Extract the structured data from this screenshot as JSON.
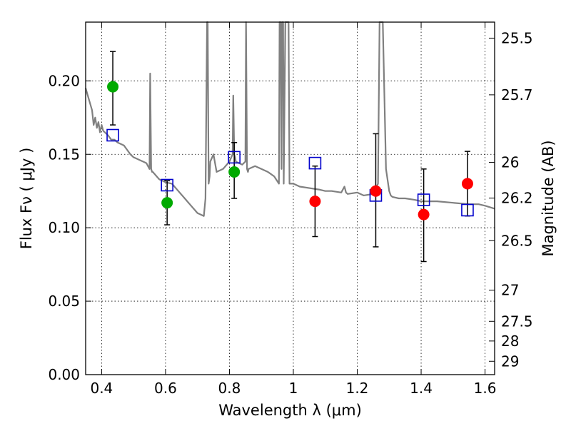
{
  "chart_data": {
    "type": "scatter",
    "xlabel": "Wavelength  λ (μm)",
    "ylabel": "Flux  Fν  ( μJy )",
    "y2label": "Magnitude (AB)",
    "xlim": [
      0.35,
      1.63
    ],
    "ylim": [
      0.0,
      0.24
    ],
    "grid": true,
    "x_ticks": [
      0.4,
      0.6,
      0.8,
      1.0,
      1.2,
      1.4,
      1.6
    ],
    "x_tick_labels": [
      "0.4",
      "0.6",
      "0.8",
      "1",
      "1.2",
      "1.4",
      "1.6"
    ],
    "y_ticks": [
      0.0,
      0.05,
      0.1,
      0.15,
      0.2
    ],
    "y_tick_labels": [
      "0.00",
      "0.05",
      "0.10",
      "0.15",
      "0.20"
    ],
    "mag_ticks": [
      {
        "label": "25.5",
        "flux": 0.2291
      },
      {
        "label": "25.7",
        "flux": 0.1905
      },
      {
        "label": "26",
        "flux": 0.1445
      },
      {
        "label": "26.2",
        "flux": 0.1202
      },
      {
        "label": "26.5",
        "flux": 0.0912
      },
      {
        "label": "27",
        "flux": 0.0575
      },
      {
        "label": "27.5",
        "flux": 0.0363
      },
      {
        "label": "28",
        "flux": 0.0229
      },
      {
        "label": "29",
        "flux": 0.0091
      }
    ],
    "series": [
      {
        "name": "model-spectrum",
        "kind": "line",
        "color": "#808080",
        "x": [
          0.35,
          0.37,
          0.375,
          0.38,
          0.385,
          0.39,
          0.395,
          0.4,
          0.405,
          0.41,
          0.42,
          0.43,
          0.44,
          0.45,
          0.46,
          0.47,
          0.48,
          0.49,
          0.5,
          0.51,
          0.52,
          0.53,
          0.54,
          0.55,
          0.552,
          0.555,
          0.558,
          0.56,
          0.58,
          0.6,
          0.62,
          0.64,
          0.66,
          0.68,
          0.7,
          0.72,
          0.725,
          0.73,
          0.732,
          0.735,
          0.738,
          0.74,
          0.75,
          0.76,
          0.78,
          0.8,
          0.81,
          0.812,
          0.815,
          0.818,
          0.82,
          0.84,
          0.85,
          0.852,
          0.855,
          0.858,
          0.86,
          0.88,
          0.9,
          0.92,
          0.94,
          0.955,
          0.957,
          0.96,
          0.963,
          0.965,
          0.968,
          0.97,
          0.975,
          0.98,
          0.985,
          0.988,
          0.99,
          1.0,
          1.02,
          1.05,
          1.08,
          1.1,
          1.12,
          1.15,
          1.16,
          1.165,
          1.17,
          1.2,
          1.22,
          1.25,
          1.265,
          1.27,
          1.275,
          1.28,
          1.29,
          1.3,
          1.305,
          1.31,
          1.33,
          1.35,
          1.38,
          1.4,
          1.45,
          1.5,
          1.55,
          1.58,
          1.6,
          1.63
        ],
        "y": [
          0.195,
          0.18,
          0.17,
          0.175,
          0.168,
          0.172,
          0.165,
          0.17,
          0.166,
          0.165,
          0.163,
          0.16,
          0.16,
          0.158,
          0.157,
          0.156,
          0.153,
          0.15,
          0.148,
          0.147,
          0.146,
          0.145,
          0.144,
          0.14,
          0.205,
          0.14,
          0.138,
          0.138,
          0.133,
          0.131,
          0.13,
          0.125,
          0.12,
          0.115,
          0.11,
          0.108,
          0.12,
          0.24,
          0.24,
          0.13,
          0.135,
          0.145,
          0.15,
          0.138,
          0.14,
          0.145,
          0.15,
          0.19,
          0.15,
          0.148,
          0.145,
          0.143,
          0.145,
          0.24,
          0.14,
          0.138,
          0.14,
          0.142,
          0.14,
          0.138,
          0.135,
          0.13,
          0.24,
          0.24,
          0.14,
          0.24,
          0.24,
          0.13,
          0.24,
          0.24,
          0.24,
          0.13,
          0.13,
          0.13,
          0.128,
          0.127,
          0.126,
          0.125,
          0.125,
          0.124,
          0.128,
          0.124,
          0.123,
          0.124,
          0.122,
          0.123,
          0.13,
          0.24,
          0.24,
          0.24,
          0.14,
          0.125,
          0.122,
          0.121,
          0.12,
          0.12,
          0.119,
          0.118,
          0.118,
          0.117,
          0.116,
          0.116,
          0.115,
          0.113
        ]
      },
      {
        "name": "model-photometry",
        "kind": "open-square",
        "color": "#0000cc",
        "x": [
          0.435,
          0.605,
          0.815,
          1.068,
          1.258,
          1.408,
          1.545
        ],
        "y": [
          0.163,
          0.129,
          0.148,
          0.144,
          0.122,
          0.119,
          0.112
        ]
      },
      {
        "name": "observed-green",
        "kind": "filled-circle",
        "color": "#00aa00",
        "x": [
          0.435,
          0.605,
          0.815
        ],
        "y": [
          0.196,
          0.117,
          0.138
        ],
        "yerr_low": [
          0.17,
          0.102,
          0.12
        ],
        "yerr_high": [
          0.22,
          0.132,
          0.158
        ]
      },
      {
        "name": "observed-red",
        "kind": "filled-circle",
        "color": "#ff0000",
        "x": [
          1.068,
          1.258,
          1.408,
          1.545
        ],
        "y": [
          0.118,
          0.125,
          0.109,
          0.13
        ],
        "yerr_low": [
          0.094,
          0.087,
          0.077,
          0.108
        ],
        "yerr_high": [
          0.142,
          0.164,
          0.14,
          0.152
        ]
      }
    ]
  }
}
